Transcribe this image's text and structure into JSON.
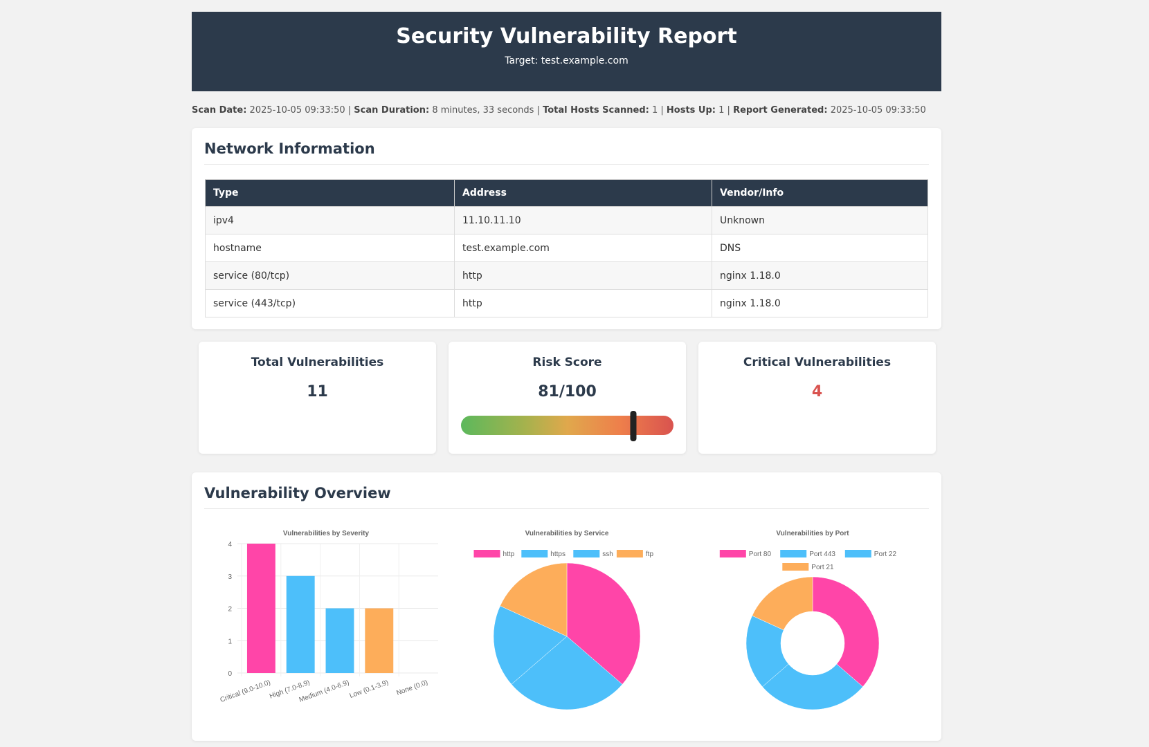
{
  "header": {
    "title": "Security Vulnerability Report",
    "target": "Target: test.example.com"
  },
  "scan": {
    "date_label": "Scan Date:",
    "date": " 2025-10-05 09:33:50 | ",
    "duration_label": "Scan Duration:",
    "duration": " 8 minutes, 33 seconds | ",
    "hosts_label": "Total Hosts Scanned:",
    "hosts": " 1 | ",
    "up_label": "Hosts Up:",
    "up": " 1 | ",
    "gen_label": "Report Generated:",
    "gen": " 2025-10-05 09:33:50"
  },
  "network": {
    "title": "Network Information",
    "columns": [
      "Type",
      "Address",
      "Vendor/Info"
    ],
    "rows": [
      [
        "ipv4",
        "11.10.11.10",
        "Unknown"
      ],
      [
        "hostname",
        "test.example.com",
        "DNS"
      ],
      [
        "service (80/tcp)",
        "http",
        "nginx 1.18.0"
      ],
      [
        "service (443/tcp)",
        "http",
        "nginx 1.18.0"
      ]
    ]
  },
  "stats": {
    "total_label": "Total Vulnerabilities",
    "total": "11",
    "risk_label": "Risk Score",
    "risk": "81/100",
    "risk_value": 81,
    "critical_label": "Critical Vulnerabilities",
    "critical": "4",
    "critical_color": "#d9534f"
  },
  "overview": {
    "title": "Vulnerability Overview"
  },
  "colors": {
    "pink": "#ff45a8",
    "blue": "#4dbffa",
    "orange": "#fdad5a"
  },
  "chart_data": [
    {
      "type": "bar",
      "title": "Vulnerabilities by Severity",
      "categories": [
        "Critical (9.0-10.0)",
        "High (7.0-8.9)",
        "Medium (4.0-6.9)",
        "Low (0.1-3.9)",
        "None (0.0)"
      ],
      "values": [
        4,
        3,
        2,
        2,
        0
      ],
      "colors": [
        "#ff45a8",
        "#4dbffa",
        "#4dbffa",
        "#fdad5a",
        "#cccccc"
      ],
      "ylim": [
        0,
        4
      ],
      "yticks": [
        0,
        1,
        2,
        3,
        4
      ],
      "grid": true
    },
    {
      "type": "pie",
      "title": "Vulnerabilities by Service",
      "labels": [
        "http",
        "https",
        "ssh",
        "ftp"
      ],
      "values": [
        4,
        3,
        2,
        2
      ],
      "colors": [
        "#ff45a8",
        "#4dbffa",
        "#4dbffa",
        "#fdad5a"
      ],
      "legend": "top"
    },
    {
      "type": "doughnut",
      "title": "Vulnerabilities by Port",
      "labels": [
        "Port 80",
        "Port 443",
        "Port 22",
        "Port 21"
      ],
      "values": [
        4,
        3,
        2,
        2
      ],
      "colors": [
        "#ff45a8",
        "#4dbffa",
        "#4dbffa",
        "#fdad5a"
      ],
      "legend": "top"
    }
  ]
}
